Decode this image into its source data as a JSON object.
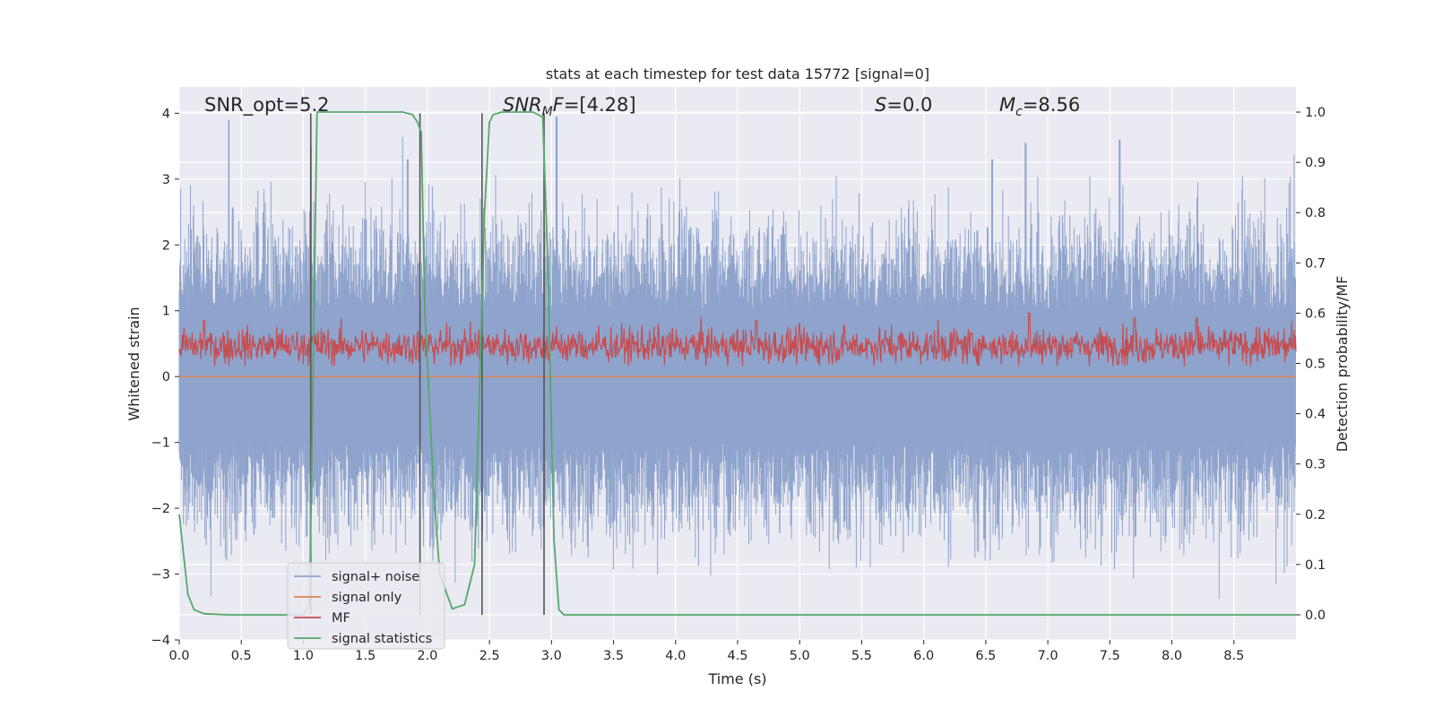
{
  "chart_data": {
    "type": "line",
    "title": "stats at each timestep for test data 15772 [signal=0]",
    "xlabel": "Time (s)",
    "ylabel_left": "Whitened strain",
    "ylabel_right": "Detection probability/MF",
    "xlim": [
      0.0,
      9.0
    ],
    "ylim_left": [
      -4.0,
      4.4
    ],
    "ylim_right": [
      -0.05,
      1.05
    ],
    "grid": true,
    "legend_position": "lower left",
    "x_ticks": [
      "0.0",
      "0.5",
      "1.0",
      "1.5",
      "2.0",
      "2.5",
      "3.0",
      "3.5",
      "4.0",
      "4.5",
      "5.0",
      "5.5",
      "6.0",
      "6.5",
      "7.0",
      "7.5",
      "8.0",
      "8.5"
    ],
    "x_tick_values": [
      0.0,
      0.5,
      1.0,
      1.5,
      2.0,
      2.5,
      3.0,
      3.5,
      4.0,
      4.5,
      5.0,
      5.5,
      6.0,
      6.5,
      7.0,
      7.5,
      8.0,
      8.5
    ],
    "y_left_ticks": [
      "−4",
      "−3",
      "−2",
      "−1",
      "0",
      "1",
      "2",
      "3",
      "4"
    ],
    "y_left_tick_values": [
      -4,
      -3,
      -2,
      -1,
      0,
      1,
      2,
      3,
      4
    ],
    "y_right_ticks": [
      "0.0",
      "0.1",
      "0.2",
      "0.3",
      "0.4",
      "0.5",
      "0.6",
      "0.7",
      "0.8",
      "0.9",
      "1.0"
    ],
    "y_right_tick_values": [
      0.0,
      0.1,
      0.2,
      0.3,
      0.4,
      0.5,
      0.6,
      0.7,
      0.8,
      0.9,
      1.0
    ],
    "annotations": {
      "snr_opt": "SNR_opt=5.2",
      "snr_mf_main": "SNR",
      "snr_mf_sub": "M",
      "snr_mf_rest": "F",
      "snr_mf_value": "=[4.28]",
      "s_var": "S",
      "s_value": "=0.0",
      "mc_var": "M",
      "mc_sub": "c",
      "mc_value": "=8.56"
    },
    "series": [
      {
        "name": "signal+ noise",
        "color": "#8fa4cc",
        "axis": "left",
        "description_values": {
          "approx_amplitude_min": -3.4,
          "approx_amplitude_max": 3.95,
          "peak_times": [
            0.4,
            1.06,
            1.84,
            3.04,
            6.55,
            6.82,
            7.58
          ],
          "peak_values": [
            3.9,
            3.5,
            3.3,
            4.0,
            3.3,
            3.55,
            3.6
          ]
        }
      },
      {
        "name": "signal only",
        "color": "#dd8452",
        "axis": "left",
        "values_constant": 0.0
      },
      {
        "name": "MF",
        "color": "#c44e52",
        "axis": "right",
        "approx_range": [
          0.495,
          0.6
        ],
        "peak_times": [
          0.2,
          4.65,
          6.85,
          7.7,
          8.2
        ],
        "peak_values": [
          0.585,
          0.585,
          0.6,
          0.59,
          0.59
        ]
      },
      {
        "name": "signal statistics",
        "color": "#55a868",
        "axis": "right",
        "x": [
          0.0,
          0.07,
          0.12,
          0.2,
          0.4,
          0.8,
          1.0,
          1.05,
          1.08,
          1.11,
          1.2,
          1.5,
          1.8,
          1.88,
          1.92,
          1.95,
          1.98,
          2.05,
          2.1,
          2.2,
          2.3,
          2.38,
          2.42,
          2.46,
          2.5,
          2.53,
          2.6,
          2.7,
          2.85,
          2.93,
          2.97,
          3.02,
          3.06,
          3.1,
          3.3,
          3.6,
          4.0,
          5.0,
          6.0,
          7.0,
          8.0,
          9.0
        ],
        "y": [
          0.2,
          0.04,
          0.01,
          0.002,
          0.0,
          0.0,
          0.0,
          0.02,
          0.5,
          1.0,
          1.0,
          1.0,
          1.0,
          0.995,
          0.98,
          0.96,
          0.6,
          0.25,
          0.08,
          0.012,
          0.02,
          0.1,
          0.45,
          0.8,
          0.98,
          0.995,
          1.0,
          1.0,
          1.0,
          0.99,
          0.7,
          0.15,
          0.01,
          0.0,
          0.0,
          0.0,
          0.0,
          0.0,
          0.0,
          0.0,
          0.0,
          0.0
        ]
      }
    ],
    "vertical_markers": {
      "color": "#555555",
      "x": [
        1.06,
        1.94,
        2.44,
        2.94
      ],
      "y_top_left": 4.0,
      "y_bottom_right": 0.0
    }
  }
}
